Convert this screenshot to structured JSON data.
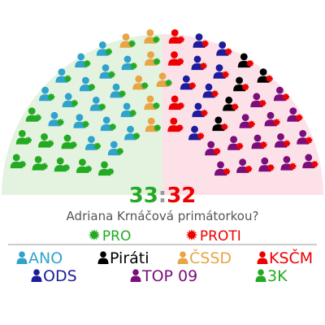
{
  "chart_data": {
    "type": "parliament",
    "question": "Adriana Krnáčová primátorkou?",
    "score": {
      "pro": "33",
      "separator": ":",
      "proti": "32"
    },
    "votes": [
      {
        "name": "PRO",
        "color": "#22aa22",
        "glyph": "✹",
        "count": 33
      },
      {
        "name": "PROTI",
        "color": "#ee0000",
        "glyph": "✹",
        "count": 32
      }
    ],
    "parties": [
      {
        "name": "ANO",
        "color": "#2fa3cc",
        "seats": 17,
        "pro": 17,
        "proti": 0
      },
      {
        "name": "Piráti",
        "color": "#000000",
        "seats": 5,
        "pro": 0,
        "proti": 5
      },
      {
        "name": "ČSSD",
        "color": "#e8a545",
        "seats": 7,
        "pro": 7,
        "proti": 0
      },
      {
        "name": "KSČM",
        "color": "#ee0000",
        "seats": 4,
        "pro": 0,
        "proti": 4
      },
      {
        "name": "ODS",
        "color": "#1c1c9c",
        "seats": 8,
        "pro": 0,
        "proti": 8
      },
      {
        "name": "TOP 09",
        "color": "#7a0e7a",
        "seats": 15,
        "pro": 0,
        "proti": 15
      },
      {
        "name": "3K",
        "color": "#22aa22",
        "seats": 9,
        "pro": 9,
        "proti": 0
      }
    ],
    "background": {
      "pro": "#e4f3e0",
      "proti": "#fde1e8"
    }
  }
}
